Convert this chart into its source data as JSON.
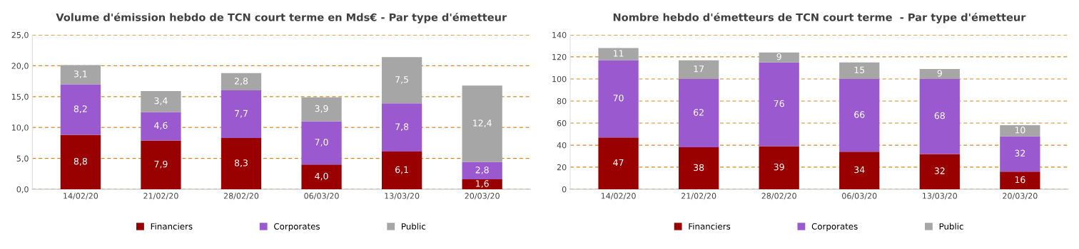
{
  "chart_data": [
    {
      "type": "bar",
      "stacked": true,
      "title": "Volume d'émission hebdo de TCN court terme en Mds€ - Par type d'émetteur",
      "categories": [
        "14/02/20",
        "21/02/20",
        "28/02/20",
        "06/03/20",
        "13/03/20",
        "20/03/20"
      ],
      "series": [
        {
          "name": "Financiers",
          "color": "#990000",
          "values": [
            8.8,
            7.9,
            8.3,
            4.0,
            6.1,
            1.6
          ],
          "value_labels": [
            "8,8",
            "7,9",
            "8,3",
            "4,0",
            "6,1",
            "1,6"
          ]
        },
        {
          "name": "Corporates",
          "color": "#9b59d0",
          "values": [
            8.2,
            4.6,
            7.7,
            7.0,
            7.8,
            2.8
          ],
          "value_labels": [
            "8,2",
            "4,6",
            "7,7",
            "7,0",
            "7,8",
            "2,8"
          ]
        },
        {
          "name": "Public",
          "color": "#a6a6a6",
          "values": [
            3.1,
            3.4,
            2.8,
            3.9,
            7.5,
            12.4
          ],
          "value_labels": [
            "3,1",
            "3,4",
            "2,8",
            "3,9",
            "7,5",
            "12,4"
          ]
        }
      ],
      "ylim": [
        0,
        25
      ],
      "yticks": [
        {
          "value": 0,
          "label": "0,0"
        },
        {
          "value": 5,
          "label": "5,0"
        },
        {
          "value": 10,
          "label": "10,0"
        },
        {
          "value": 15,
          "label": "15,0"
        },
        {
          "value": 20,
          "label": "20,0"
        },
        {
          "value": 25,
          "label": "25,0"
        }
      ],
      "grid": "y",
      "legend": "bottom"
    },
    {
      "type": "bar",
      "stacked": true,
      "title": "Nombre hebdo d'émetteurs de TCN court terme  - Par type d'émetteur",
      "categories": [
        "14/02/20",
        "21/02/20",
        "28/02/20",
        "06/03/20",
        "13/03/20",
        "20/03/20"
      ],
      "series": [
        {
          "name": "Financiers",
          "color": "#990000",
          "values": [
            47,
            38,
            39,
            34,
            32,
            16
          ]
        },
        {
          "name": "Corporates",
          "color": "#9b59d0",
          "values": [
            70,
            62,
            76,
            66,
            68,
            32
          ]
        },
        {
          "name": "Public",
          "color": "#a6a6a6",
          "values": [
            11,
            17,
            9,
            15,
            9,
            10
          ]
        }
      ],
      "data_labels": true,
      "ylim": [
        0,
        140
      ],
      "yticks": [
        0,
        20,
        40,
        60,
        80,
        100,
        120,
        140
      ],
      "grid": "y",
      "legend": "bottom"
    }
  ]
}
